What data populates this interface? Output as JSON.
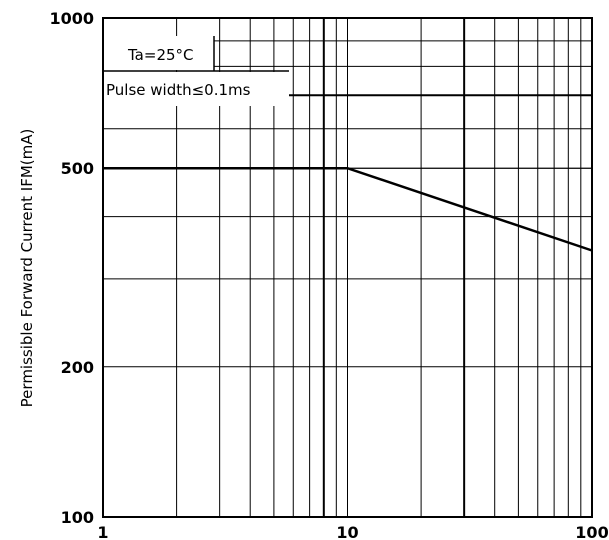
{
  "chart_data": {
    "type": "line",
    "ylabel": "Permissible Forward Current IFM(mA)",
    "xlabel": "",
    "x_scale": "log",
    "y_scale": "log",
    "xlim": [
      1,
      100
    ],
    "ylim": [
      100,
      1000
    ],
    "x_ticks": [
      1,
      10,
      100
    ],
    "x_tick_labels": [
      "1",
      "10",
      "100"
    ],
    "y_ticks": [
      100,
      200,
      500,
      1000
    ],
    "y_tick_labels": [
      "100",
      "200",
      "500",
      "1000"
    ],
    "x_minor_grid": [
      2,
      3,
      4,
      5,
      6,
      7,
      8,
      9,
      20,
      30,
      40,
      50,
      60,
      70,
      80,
      90
    ],
    "y_minor_grid": [
      300,
      400,
      500,
      600,
      700,
      800,
      900
    ],
    "grid": true,
    "annotations": [
      "Ta=25°C",
      "Pulse width≤0.1ms"
    ],
    "series": [
      {
        "x": [
          1,
          10,
          100
        ],
        "y": [
          500,
          500,
          342
        ]
      }
    ]
  }
}
